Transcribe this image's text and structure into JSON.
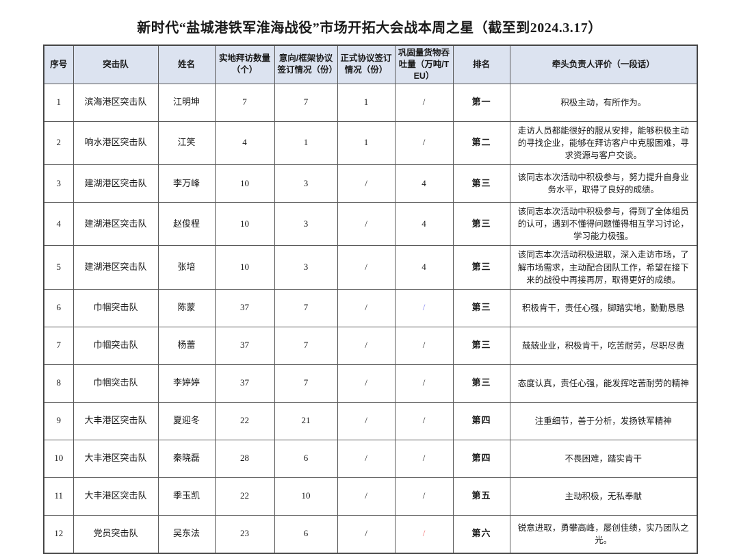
{
  "page": {
    "title": "新时代“盐城港铁军淮海战役”市场开拓大会战本周之星（截至到2024.3.17）"
  },
  "table": {
    "columns": [
      "序号",
      "突击队",
      "姓名",
      "实地拜访数量（个）",
      "意向/框架协议签订情况（份）",
      "正式协议签订情况（份）",
      "巩固量货物吞吐量（万吨/TEU）",
      "排名",
      "牵头负责人评价（一段话）"
    ],
    "rows": [
      [
        "1",
        "滨海港区突击队",
        "江明坤",
        "7",
        "7",
        "1",
        "/",
        "第一",
        "积极主动，有所作为。"
      ],
      [
        "2",
        "响水港区突击队",
        "江笑",
        "4",
        "1",
        "1",
        "/",
        "第二",
        "走访人员都能很好的服从安排，能够积极主动的寻找企业，能够在拜访客户中克服困难，寻求资源与客户交谈。"
      ],
      [
        "3",
        "建湖港区突击队",
        "李万峰",
        "10",
        "3",
        "/",
        "4",
        "第三",
        "该同志本次活动中积极参与，努力提升自身业务水平，取得了良好的成绩。"
      ],
      [
        "4",
        "建湖港区突击队",
        "赵俊程",
        "10",
        "3",
        "/",
        "4",
        "第三",
        "该同志本次活动中积极参与，得到了全体组员的认可，遇到不懂得问题懂得相互学习讨论，学习能力极强。"
      ],
      [
        "5",
        "建湖港区突击队",
        "张培",
        "10",
        "3",
        "/",
        "4",
        "第三",
        "该同志本次活动积极进取，深入走访市场，了解市场需求，主动配合团队工作，希望在接下来的战役中再接再厉，取得更好的成绩。"
      ],
      [
        "6",
        "巾帼突击队",
        "陈蒙",
        "37",
        "7",
        "/",
        "/",
        "第三",
        "积极肯干，责任心强，脚踏实地，勤勤恳恳"
      ],
      [
        "7",
        "巾帼突击队",
        "杨蕾",
        "37",
        "7",
        "/",
        "/",
        "第三",
        "兢兢业业，积极肯干，吃苦耐劳，尽职尽责"
      ],
      [
        "8",
        "巾帼突击队",
        "李婷婷",
        "37",
        "7",
        "/",
        "/",
        "第三",
        "态度认真，责任心强，能发挥吃苦耐劳的精神"
      ],
      [
        "9",
        "大丰港区突击队",
        "夏迎冬",
        "22",
        "21",
        "/",
        "/",
        "第四",
        "注重细节，善于分析，发扬铁军精神"
      ],
      [
        "10",
        "大丰港区突击队",
        "秦晓磊",
        "28",
        "6",
        "/",
        "/",
        "第四",
        "不畏困难，踏实肯干"
      ],
      [
        "11",
        "大丰港区突击队",
        "季玉凯",
        "22",
        "10",
        "/",
        "/",
        "第五",
        "主动积极，无私奉献"
      ],
      [
        "12",
        "党员突击队",
        "吴东法",
        "23",
        "6",
        "/",
        "/",
        "第六",
        "锐意进取，勇攀高峰，屡创佳绩，实乃团队之光。"
      ]
    ],
    "highlights": [
      {
        "row_index": 5,
        "col_index": 6,
        "color": "#7b7bf0"
      },
      {
        "row_index": 11,
        "col_index": 6,
        "color": "#f26b6b"
      }
    ],
    "colors": {
      "header_bg": "#dce3f0",
      "border": "#595959"
    }
  }
}
